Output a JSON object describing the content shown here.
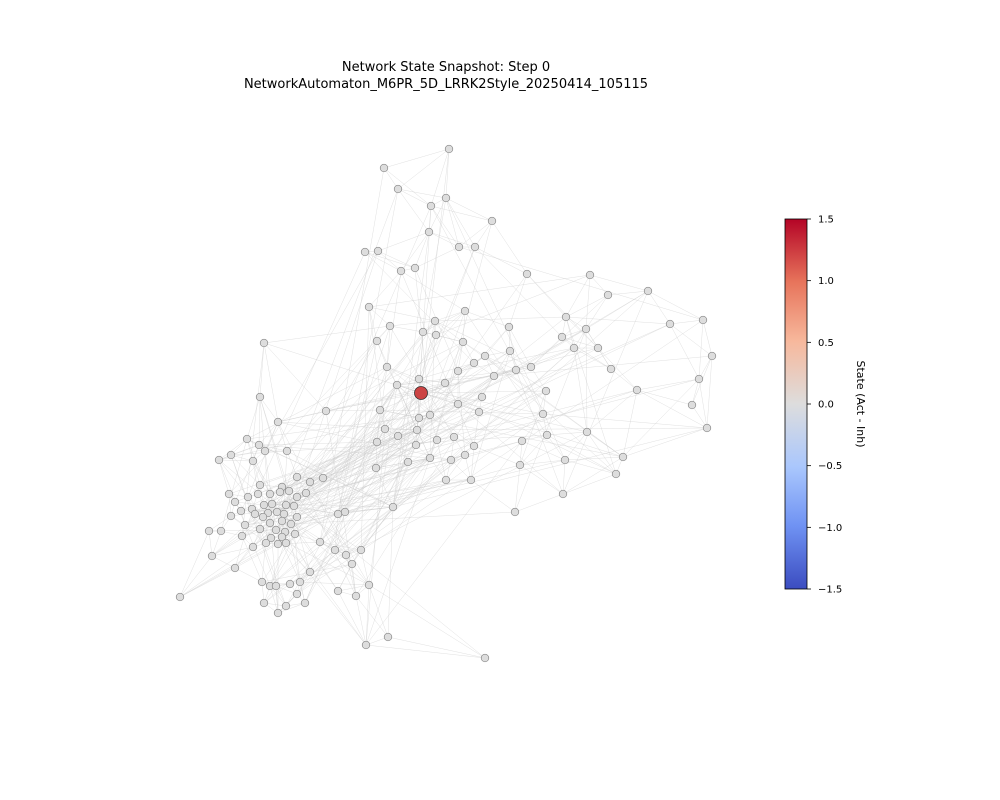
{
  "title": "Network State Snapshot: Step 0",
  "subtitle": "NetworkAutomaton_M6PR_5D_LRRK2Style_20250414_105115",
  "chart_data": {
    "type": "scatter",
    "title": "Network State Snapshot: Step 0",
    "subtitle": "NetworkAutomaton_M6PR_5D_LRRK2Style_20250414_105115",
    "colorbar": {
      "label": "State (Act - Inh)",
      "min": -1.5,
      "max": 1.5,
      "ticks": [
        "1.5",
        "1.0",
        "0.5",
        "0.0",
        "−0.5",
        "−1.0",
        "−1.5"
      ],
      "colormap": "coolwarm",
      "colors": [
        "#3b4cc0",
        "#6f92f3",
        "#aac7fd",
        "#dddddd",
        "#f7b89c",
        "#e7745b",
        "#b40426"
      ]
    },
    "node_state_default": 0.0,
    "highlight_node": {
      "state": 1.5
    },
    "axes": "off",
    "grid": false
  },
  "colors": {
    "node_neutral": "#dddddd",
    "node_active": "#cc4444",
    "node_edge": "#888888",
    "edge": "#cccccc"
  }
}
